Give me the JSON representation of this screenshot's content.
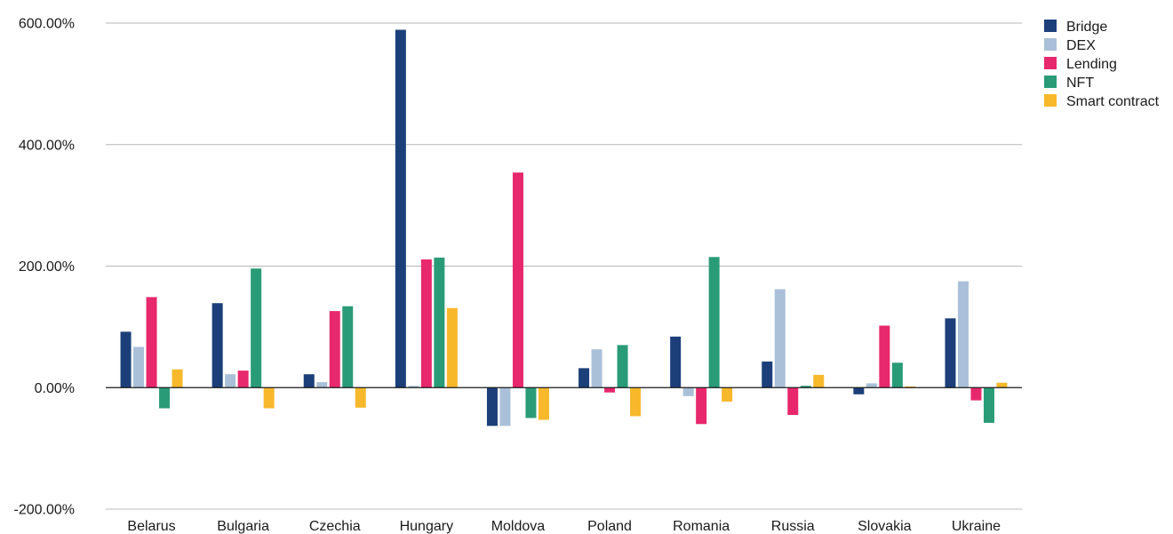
{
  "chart_data": {
    "type": "bar",
    "title": "",
    "xlabel": "",
    "ylabel": "",
    "ylim": [
      -200,
      600
    ],
    "y_ticks": [
      -200,
      0,
      200,
      400,
      600
    ],
    "y_tick_labels": [
      "-200.00%",
      "0.00%",
      "200.00%",
      "400.00%",
      "600.00%"
    ],
    "grid": "horizontal",
    "legend_position": "top-right",
    "categories": [
      "Belarus",
      "Bulgaria",
      "Czechia",
      "Hungary",
      "Moldova",
      "Poland",
      "Romania",
      "Russia",
      "Slovakia",
      "Ukraine"
    ],
    "series": [
      {
        "name": "Bridge",
        "color": "#1c3f7a",
        "values": [
          92,
          139,
          22,
          589,
          -63,
          32,
          84,
          43,
          -11,
          114
        ]
      },
      {
        "name": "DEX",
        "color": "#a9c0d8",
        "values": [
          67,
          22,
          9,
          3,
          -63,
          63,
          -14,
          162,
          7,
          175
        ]
      },
      {
        "name": "Lending",
        "color": "#e8286c",
        "values": [
          149,
          28,
          126,
          211,
          354,
          -8,
          -60,
          -45,
          102,
          -21
        ]
      },
      {
        "name": "NFT",
        "color": "#299b77",
        "values": [
          -34,
          196,
          134,
          214,
          -50,
          70,
          215,
          3,
          41,
          -58
        ]
      },
      {
        "name": "Smart contract",
        "color": "#f8b82c",
        "values": [
          30,
          -34,
          -33,
          131,
          -53,
          -47,
          -23,
          21,
          2,
          8
        ]
      }
    ]
  }
}
